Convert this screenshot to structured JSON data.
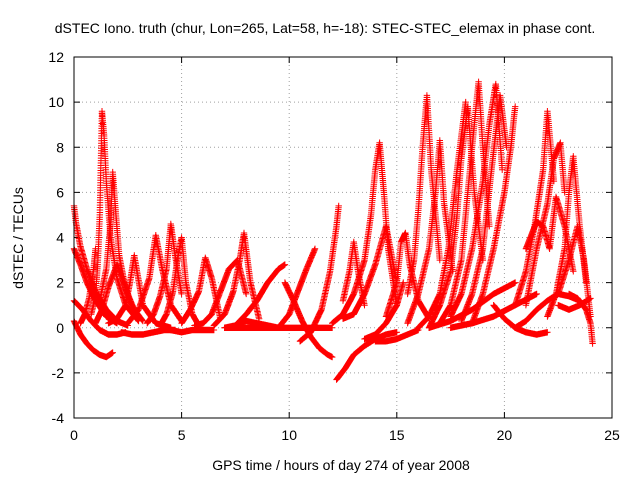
{
  "chart_data": {
    "type": "scatter",
    "title": "dSTEC Iono. truth (chur, Lon=265, Lat=58, h=-18): STEC-STEC_elemax in phase cont.",
    "xlabel": "GPS time / hours of day 274 of year 2008",
    "ylabel": "dSTEC  / TECUs",
    "xlim": [
      0,
      25
    ],
    "ylim": [
      -4,
      12
    ],
    "xticks": [
      0,
      5,
      10,
      15,
      20,
      25
    ],
    "yticks": [
      -4,
      -2,
      0,
      2,
      4,
      6,
      8,
      10,
      12
    ],
    "grid": true,
    "marker": "+",
    "color": "#ff0000",
    "series": [
      {
        "x": [
          0.0,
          0.3,
          0.6,
          0.9,
          1.2,
          1.5,
          1.8
        ],
        "y": [
          0.3,
          -0.3,
          -0.7,
          -1.0,
          -1.2,
          -1.3,
          -1.1
        ]
      },
      {
        "x": [
          0.0,
          0.4,
          0.8,
          1.2,
          1.6,
          2.0,
          2.4
        ],
        "y": [
          1.2,
          0.8,
          0.3,
          -0.1,
          -0.3,
          -0.3,
          -0.2
        ]
      },
      {
        "x": [
          0.0,
          0.1,
          0.3,
          0.6,
          1.0,
          1.5,
          2.0,
          2.5
        ],
        "y": [
          5.4,
          4.6,
          3.6,
          2.6,
          1.6,
          0.8,
          0.3,
          0.1
        ]
      },
      {
        "x": [
          0.0,
          0.3,
          0.6,
          1.0,
          1.5,
          2.0
        ],
        "y": [
          3.5,
          2.8,
          2.0,
          1.2,
          0.5,
          0.2
        ]
      },
      {
        "x": [
          0.3,
          0.5,
          0.7,
          0.9,
          1.0
        ],
        "y": [
          0.2,
          0.6,
          1.3,
          2.5,
          3.5
        ]
      },
      {
        "x": [
          0.8,
          1.0,
          1.1,
          1.2,
          1.3,
          1.4,
          1.5,
          1.7,
          2.0,
          2.4,
          3.0
        ],
        "y": [
          0.6,
          1.4,
          2.8,
          5.0,
          9.6,
          8.5,
          6.5,
          4.0,
          2.2,
          1.0,
          0.3
        ]
      },
      {
        "x": [
          1.2,
          1.5,
          1.7,
          1.8,
          1.9,
          2.1,
          2.4,
          2.8,
          3.2
        ],
        "y": [
          1.2,
          2.6,
          4.6,
          6.9,
          5.6,
          3.2,
          1.7,
          0.8,
          0.3
        ]
      },
      {
        "x": [
          1.0,
          1.3,
          1.6,
          2.0,
          2.4,
          2.7
        ],
        "y": [
          0.2,
          0.8,
          1.8,
          2.8,
          1.8,
          0.9
        ]
      },
      {
        "x": [
          1.6,
          2.0,
          2.4,
          2.6,
          2.8,
          3.2,
          3.8,
          4.5
        ],
        "y": [
          0.2,
          0.4,
          1.0,
          2.0,
          3.2,
          1.0,
          0.2,
          0.0
        ]
      },
      {
        "x": [
          2.2,
          2.7,
          3.2,
          3.7,
          4.2,
          4.7
        ],
        "y": [
          -0.2,
          -0.3,
          -0.3,
          -0.2,
          -0.1,
          -0.1
        ]
      },
      {
        "x": [
          2.5,
          3.0,
          3.5,
          3.8,
          4.1,
          4.5,
          5.0
        ],
        "y": [
          0.2,
          0.8,
          2.2,
          4.1,
          2.6,
          1.0,
          0.3
        ]
      },
      {
        "x": [
          3.4,
          3.7,
          4.0,
          4.3,
          4.5,
          4.7,
          5.0
        ],
        "y": [
          0.2,
          0.6,
          1.4,
          2.6,
          4.6,
          3.2,
          1.5
        ]
      },
      {
        "x": [
          4.0,
          4.3,
          4.6,
          4.8,
          5.0,
          5.2,
          5.5,
          5.8
        ],
        "y": [
          0.1,
          0.6,
          1.6,
          3.0,
          4.0,
          2.0,
          0.6,
          0.1
        ]
      },
      {
        "x": [
          4.5,
          5.0,
          5.5,
          6.0,
          6.5
        ],
        "y": [
          -0.1,
          -0.2,
          -0.1,
          -0.1,
          -0.1
        ]
      },
      {
        "x": [
          5.0,
          5.4,
          5.8,
          6.1,
          6.4,
          6.8
        ],
        "y": [
          0.2,
          0.8,
          1.6,
          3.1,
          2.2,
          0.4
        ]
      },
      {
        "x": [
          5.6,
          6.0,
          6.4,
          6.8,
          7.2,
          7.6,
          8.0
        ],
        "y": [
          0.1,
          0.2,
          0.6,
          1.6,
          2.6,
          3.0,
          1.5
        ]
      },
      {
        "x": [
          6.5,
          7.0,
          7.4,
          7.7,
          7.9,
          8.2,
          8.6
        ],
        "y": [
          0.1,
          0.6,
          1.6,
          3.0,
          4.2,
          2.0,
          0.4
        ]
      },
      {
        "x": [
          7.0,
          7.5,
          8.0,
          8.5,
          9.0,
          9.5
        ],
        "y": [
          0.0,
          0.1,
          0.3,
          0.2,
          0.1,
          0.0
        ]
      },
      {
        "x": [
          7.5,
          8.0,
          8.5,
          9.0,
          9.5,
          9.8
        ],
        "y": [
          0.1,
          0.6,
          1.2,
          2.0,
          2.6,
          2.8
        ]
      },
      {
        "x": [
          7.0,
          8.0,
          9.0,
          10.0,
          11.0,
          12.0
        ],
        "y": [
          0.0,
          0.0,
          0.0,
          0.0,
          0.0,
          0.0
        ]
      },
      {
        "x": [
          9.5,
          10.0,
          10.4,
          10.8,
          11.2
        ],
        "y": [
          0.0,
          0.6,
          1.6,
          2.6,
          3.5
        ]
      },
      {
        "x": [
          9.8,
          10.2,
          10.6,
          11.0,
          11.4,
          11.8,
          12.0
        ],
        "y": [
          2.0,
          1.2,
          0.3,
          -0.4,
          -0.9,
          -1.2,
          -1.3
        ]
      },
      {
        "x": [
          10.5,
          11.0,
          11.5,
          11.9,
          12.2,
          12.3
        ],
        "y": [
          -0.6,
          -0.2,
          0.8,
          2.5,
          4.5,
          5.4
        ]
      },
      {
        "x": [
          12.2,
          12.6,
          13.0,
          13.5,
          14.0,
          14.5,
          15.0
        ],
        "y": [
          -2.3,
          -1.8,
          -1.2,
          -0.8,
          -0.5,
          -0.3,
          -0.2
        ]
      },
      {
        "x": [
          12.5,
          12.8,
          13.0,
          13.2,
          13.5
        ],
        "y": [
          1.2,
          2.5,
          3.8,
          2.5,
          1.0
        ]
      },
      {
        "x": [
          12.0,
          12.5,
          13.0,
          13.5,
          13.8,
          14.0,
          14.2,
          14.4,
          14.6,
          15.0
        ],
        "y": [
          0.2,
          0.6,
          1.5,
          3.0,
          5.0,
          7.0,
          8.2,
          6.0,
          3.5,
          1.0
        ]
      },
      {
        "x": [
          12.5,
          13.0,
          13.5,
          14.0,
          14.5,
          15.0
        ],
        "y": [
          0.4,
          0.6,
          1.5,
          2.8,
          4.5,
          2.0
        ]
      },
      {
        "x": [
          13.5,
          14.0,
          14.5,
          15.0,
          15.3
        ],
        "y": [
          -0.5,
          -0.3,
          0.2,
          1.0,
          2.0
        ]
      },
      {
        "x": [
          14.5,
          15.0,
          15.2,
          15.4,
          15.6,
          16.0,
          16.5
        ],
        "y": [
          0.5,
          2.0,
          3.8,
          4.2,
          2.8,
          1.2,
          0.4
        ]
      },
      {
        "x": [
          14.0,
          14.5,
          15.0,
          15.5,
          16.0
        ],
        "y": [
          -0.6,
          -0.6,
          -0.5,
          -0.3,
          -0.1
        ]
      },
      {
        "x": [
          15.5,
          15.8,
          16.0,
          16.2,
          16.4,
          16.6,
          17.0
        ],
        "y": [
          1.5,
          3.0,
          5.2,
          8.0,
          10.3,
          7.0,
          3.0
        ]
      },
      {
        "x": [
          15.5,
          16.0,
          16.5,
          16.8,
          17.0,
          17.2,
          17.6
        ],
        "y": [
          0.2,
          1.5,
          3.5,
          6.0,
          8.3,
          5.5,
          2.5
        ]
      },
      {
        "x": [
          16.0,
          16.5,
          17.0,
          17.4,
          17.8,
          18.2
        ],
        "y": [
          0.0,
          0.5,
          1.5,
          3.5,
          7.0,
          10.0
        ]
      },
      {
        "x": [
          16.5,
          17.0,
          17.5,
          17.8,
          18.0,
          18.3,
          18.6,
          19.0
        ],
        "y": [
          0.0,
          1.0,
          2.5,
          5.0,
          7.5,
          9.8,
          6.0,
          3.0
        ]
      },
      {
        "x": [
          17.0,
          17.5,
          18.0,
          18.3,
          18.6,
          18.8,
          19.0,
          19.3
        ],
        "y": [
          0.2,
          1.0,
          3.0,
          6.0,
          9.0,
          10.9,
          8.0,
          4.5
        ]
      },
      {
        "x": [
          17.5,
          18.0,
          18.5,
          19.0,
          19.3,
          19.6,
          19.9
        ],
        "y": [
          0.5,
          1.5,
          3.5,
          6.5,
          9.0,
          10.8,
          7.0
        ]
      },
      {
        "x": [
          18.0,
          18.5,
          19.0,
          19.4,
          19.8,
          20.1
        ],
        "y": [
          0.3,
          1.5,
          3.5,
          7.0,
          10.3,
          8.0
        ]
      },
      {
        "x": [
          18.5,
          19.0,
          19.5,
          20.0,
          20.3,
          20.5
        ],
        "y": [
          0.2,
          1.5,
          3.5,
          6.0,
          8.0,
          9.8
        ]
      },
      {
        "x": [
          16.5,
          17.5,
          18.5,
          19.5,
          20.5
        ],
        "y": [
          0.0,
          0.3,
          0.8,
          1.5,
          2.0
        ]
      },
      {
        "x": [
          17.5,
          18.5,
          19.5,
          20.5,
          21.5
        ],
        "y": [
          0.0,
          0.2,
          0.5,
          1.0,
          1.5
        ]
      },
      {
        "x": [
          19.5,
          20.0,
          20.5,
          21.0,
          21.5,
          22.0
        ],
        "y": [
          1.0,
          0.4,
          0.0,
          -0.2,
          -0.3,
          -0.2
        ]
      },
      {
        "x": [
          20.5,
          21.0,
          21.5,
          22.0,
          22.5,
          23.0,
          23.5
        ],
        "y": [
          0.0,
          0.3,
          0.8,
          1.2,
          1.5,
          1.4,
          1.2
        ]
      },
      {
        "x": [
          20.5,
          21.0,
          21.4,
          21.8,
          22.0,
          22.3
        ],
        "y": [
          1.0,
          2.5,
          4.5,
          7.0,
          9.6,
          6.5
        ]
      },
      {
        "x": [
          21.0,
          21.5,
          22.0,
          22.3,
          22.6,
          22.8
        ],
        "y": [
          1.0,
          3.5,
          5.5,
          7.5,
          8.2,
          6.0
        ]
      },
      {
        "x": [
          21.0,
          21.5,
          21.8,
          22.1,
          22.4,
          22.8,
          23.2
        ],
        "y": [
          3.5,
          4.7,
          4.5,
          3.5,
          5.8,
          4.5,
          2.5
        ]
      },
      {
        "x": [
          22.0,
          22.4,
          22.8,
          23.0,
          23.2,
          23.5,
          23.8
        ],
        "y": [
          0.5,
          1.5,
          3.5,
          6.0,
          7.6,
          4.5,
          2.0
        ]
      },
      {
        "x": [
          22.5,
          23.0,
          23.4,
          23.7,
          24.0
        ],
        "y": [
          1.5,
          3.0,
          4.5,
          3.0,
          0.5
        ]
      },
      {
        "x": [
          23.0,
          23.4,
          23.8,
          24.0,
          24.1
        ],
        "y": [
          1.5,
          1.3,
          0.8,
          0.2,
          -0.7
        ]
      },
      {
        "x": [
          22.5,
          23.0,
          23.5,
          24.0
        ],
        "y": [
          1.0,
          0.8,
          1.0,
          1.3
        ]
      }
    ]
  }
}
